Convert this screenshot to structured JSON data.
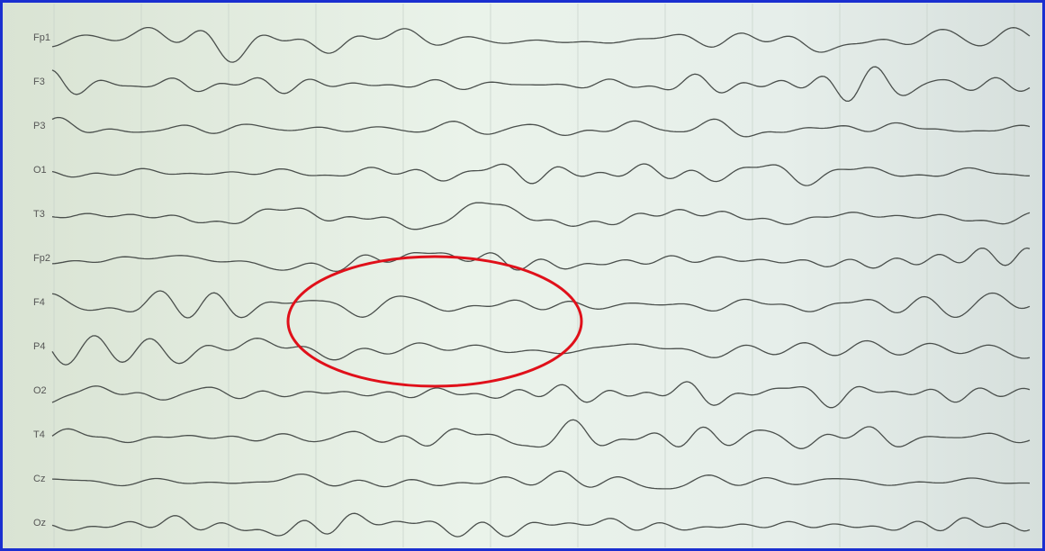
{
  "channels": [
    {
      "label": "Fp1"
    },
    {
      "label": "F3"
    },
    {
      "label": "P3"
    },
    {
      "label": "O1"
    },
    {
      "label": "T3"
    },
    {
      "label": "Fp2"
    },
    {
      "label": "F4"
    },
    {
      "label": "P4"
    },
    {
      "label": "O2"
    },
    {
      "label": "T4"
    },
    {
      "label": "Cz"
    },
    {
      "label": "Oz"
    }
  ]
}
